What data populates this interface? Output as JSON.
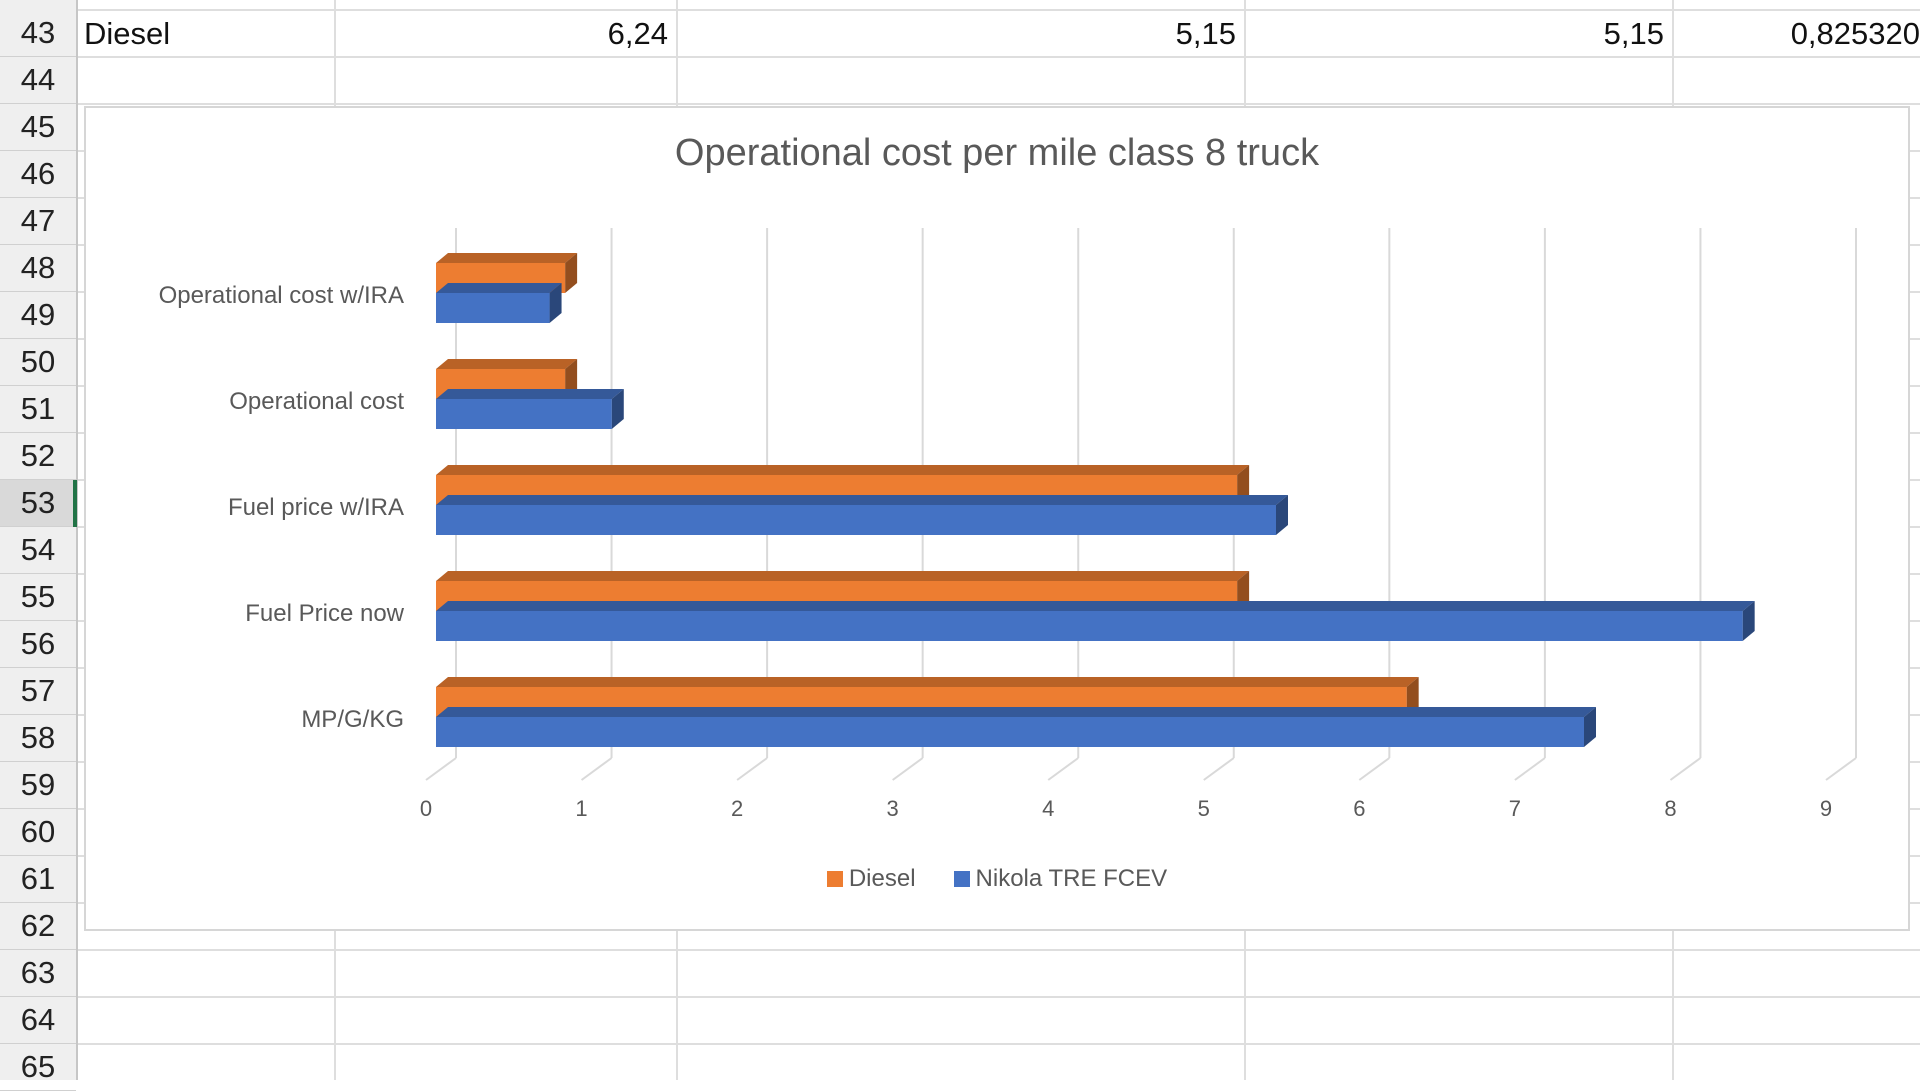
{
  "rows": {
    "labels": [
      "43",
      "44",
      "45",
      "46",
      "47",
      "48",
      "49",
      "50",
      "51",
      "52",
      "53",
      "54",
      "55",
      "56",
      "57",
      "58",
      "59",
      "60",
      "61",
      "62",
      "63",
      "64",
      "65"
    ],
    "active": "53"
  },
  "row43": {
    "label": "Diesel",
    "c1": "6,24",
    "c2": "5,15",
    "c3": "5,15",
    "c4": "0,825320"
  },
  "colors": {
    "diesel": "#ED7D31",
    "nikola": "#4472C4"
  },
  "chart_data": {
    "type": "bar",
    "orientation": "horizontal",
    "title": "Operational cost per mile class 8 truck",
    "categories": [
      "Operational cost w/IRA",
      "Operational cost",
      "Fuel price w/IRA",
      "Fuel Price now",
      "MP/G/KG"
    ],
    "series": [
      {
        "name": "Diesel",
        "color": "#ED7D31",
        "values": [
          0.83,
          0.83,
          5.15,
          5.15,
          6.24
        ]
      },
      {
        "name": "Nikola TRE FCEV",
        "color": "#4472C4",
        "values": [
          0.73,
          1.13,
          5.4,
          8.4,
          7.38
        ]
      }
    ],
    "xlim": [
      0,
      9
    ],
    "xticks": [
      "0",
      "1",
      "2",
      "3",
      "4",
      "5",
      "6",
      "7",
      "8",
      "9"
    ],
    "grid": true,
    "legend": "bottom"
  }
}
